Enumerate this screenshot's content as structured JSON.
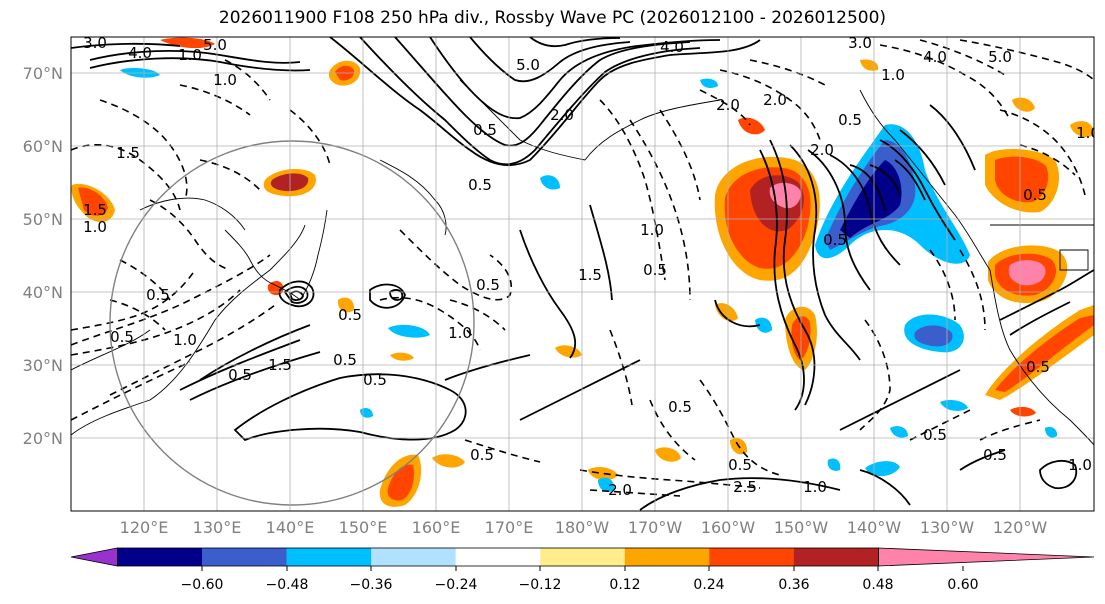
{
  "title": "2026011900 F108 250 hPa div., Rossby Wave PC (2026012100 - 2026012500)",
  "lat_labels": [
    "70°N",
    "60°N",
    "50°N",
    "40°N",
    "30°N",
    "20°N"
  ],
  "lon_labels": [
    "120°E",
    "130°E",
    "140°E",
    "150°E",
    "160°E",
    "170°E",
    "180°W",
    "170°W",
    "160°W",
    "150°W",
    "140°W",
    "130°W",
    "120°W"
  ],
  "colorbar": {
    "ticks": [
      "−0.60",
      "−0.48",
      "−0.36",
      "−0.24",
      "−0.12",
      "0.12",
      "0.24",
      "0.36",
      "0.48",
      "0.60"
    ],
    "colors": [
      "#9932cc",
      "#00008b",
      "#3a5fcd",
      "#00bfff",
      "#b0e2ff",
      "#ffffff",
      "#ffec8b",
      "#ffa500",
      "#ff4500",
      "#b22222",
      "#ff82ab"
    ]
  },
  "contour_labels": [
    "3.0",
    "4.0",
    "1.0",
    "5.0",
    "4.0",
    "5.0",
    "4.0",
    "5.0",
    "3.0",
    "2.0",
    "2.0",
    "1.0",
    "2.0",
    "1.5",
    "0.5",
    "1.0",
    "0.5",
    "1.0",
    "0.5",
    "2.0",
    "0.5",
    "1.5",
    "1.0",
    "0.5",
    "0.5",
    "1.0",
    "1.5",
    "0.5",
    "0.5",
    "1.0",
    "0.5",
    "0.5",
    "1.0",
    "1.5",
    "0.5",
    "0.5",
    "0.5",
    "0.5",
    "2.0",
    "2.5",
    "1.0",
    "0.5",
    "0.5",
    "0.5",
    "1.0",
    "0.5",
    "0.5"
  ]
}
